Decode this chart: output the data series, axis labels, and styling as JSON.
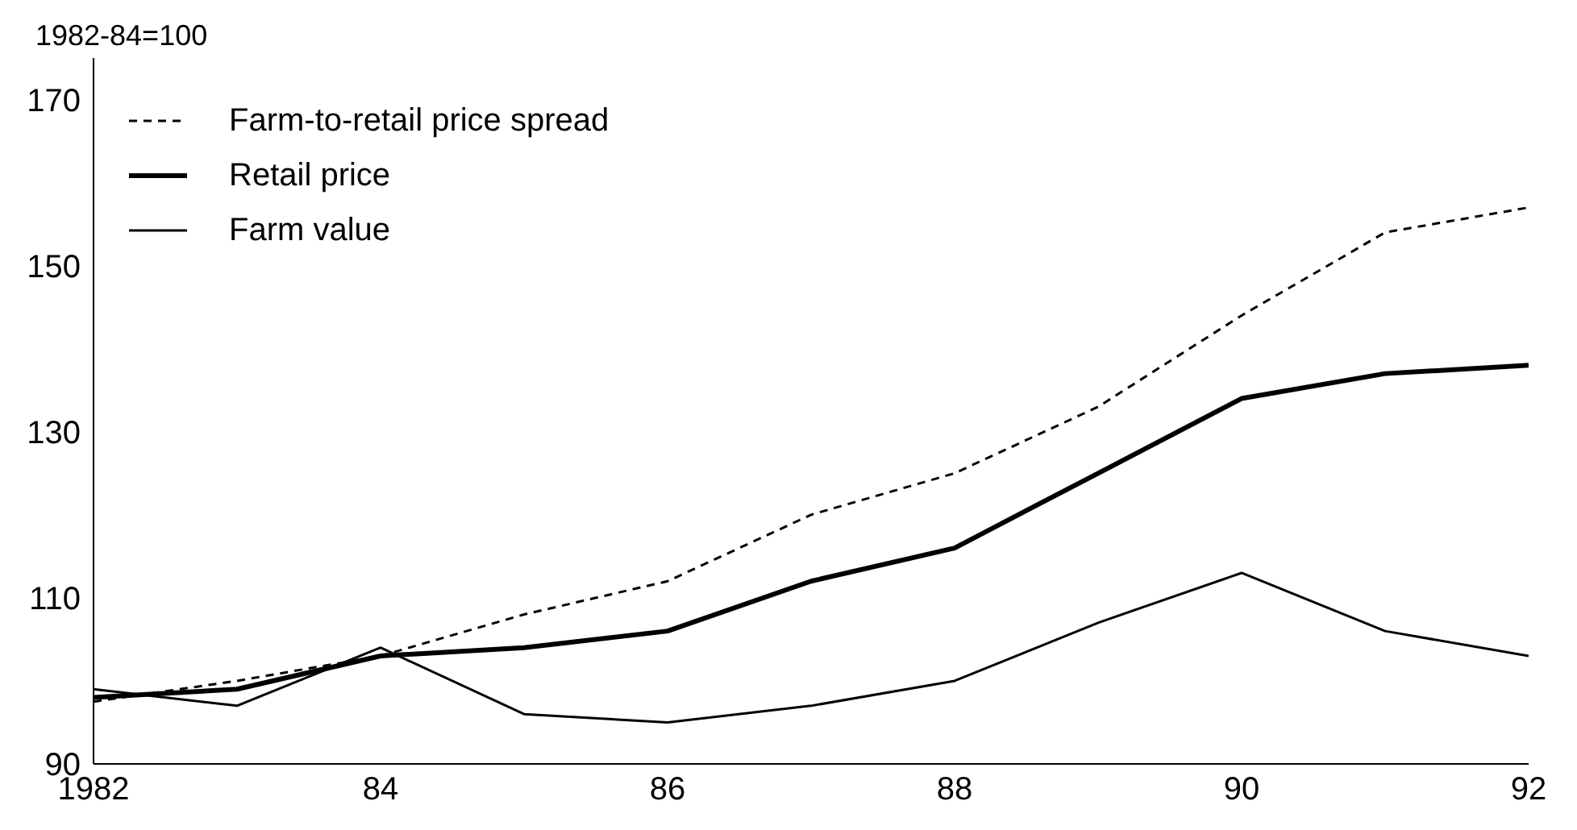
{
  "chart_data": {
    "type": "line",
    "ylabel": "1982-84=100",
    "x": [
      1982,
      1983,
      1984,
      1985,
      1986,
      1987,
      1988,
      1989,
      1990,
      1991,
      1992
    ],
    "series": [
      {
        "name": "Farm-to-retail price spread",
        "color": "#000000",
        "line_style": "dashed",
        "values": [
          97.5,
          100,
          103,
          108,
          112,
          120,
          125,
          133,
          144,
          154,
          157
        ]
      },
      {
        "name": "Retail price",
        "color": "#000000",
        "line_style": "solid",
        "values": [
          98,
          99,
          103,
          104,
          106,
          112,
          116,
          125,
          134,
          137,
          138
        ]
      },
      {
        "name": "Farm value",
        "color": "#000000",
        "line_style": "solid",
        "values": [
          99,
          97,
          104,
          96,
          95,
          97,
          100,
          107,
          113,
          106,
          103
        ]
      }
    ],
    "xlim": [
      1982,
      1992
    ],
    "xticks": [
      1982,
      {
        "value": 1984,
        "label": "84"
      },
      {
        "value": 1986,
        "label": "86"
      },
      {
        "value": 1988,
        "label": "88"
      },
      {
        "value": 1990,
        "label": "90"
      },
      {
        "value": 1992,
        "label": "92"
      }
    ],
    "ylim": [
      90,
      175
    ],
    "yticks": [
      90,
      110,
      130,
      150,
      170
    ],
    "grid": false,
    "legend": "top left",
    "marker": "none"
  }
}
